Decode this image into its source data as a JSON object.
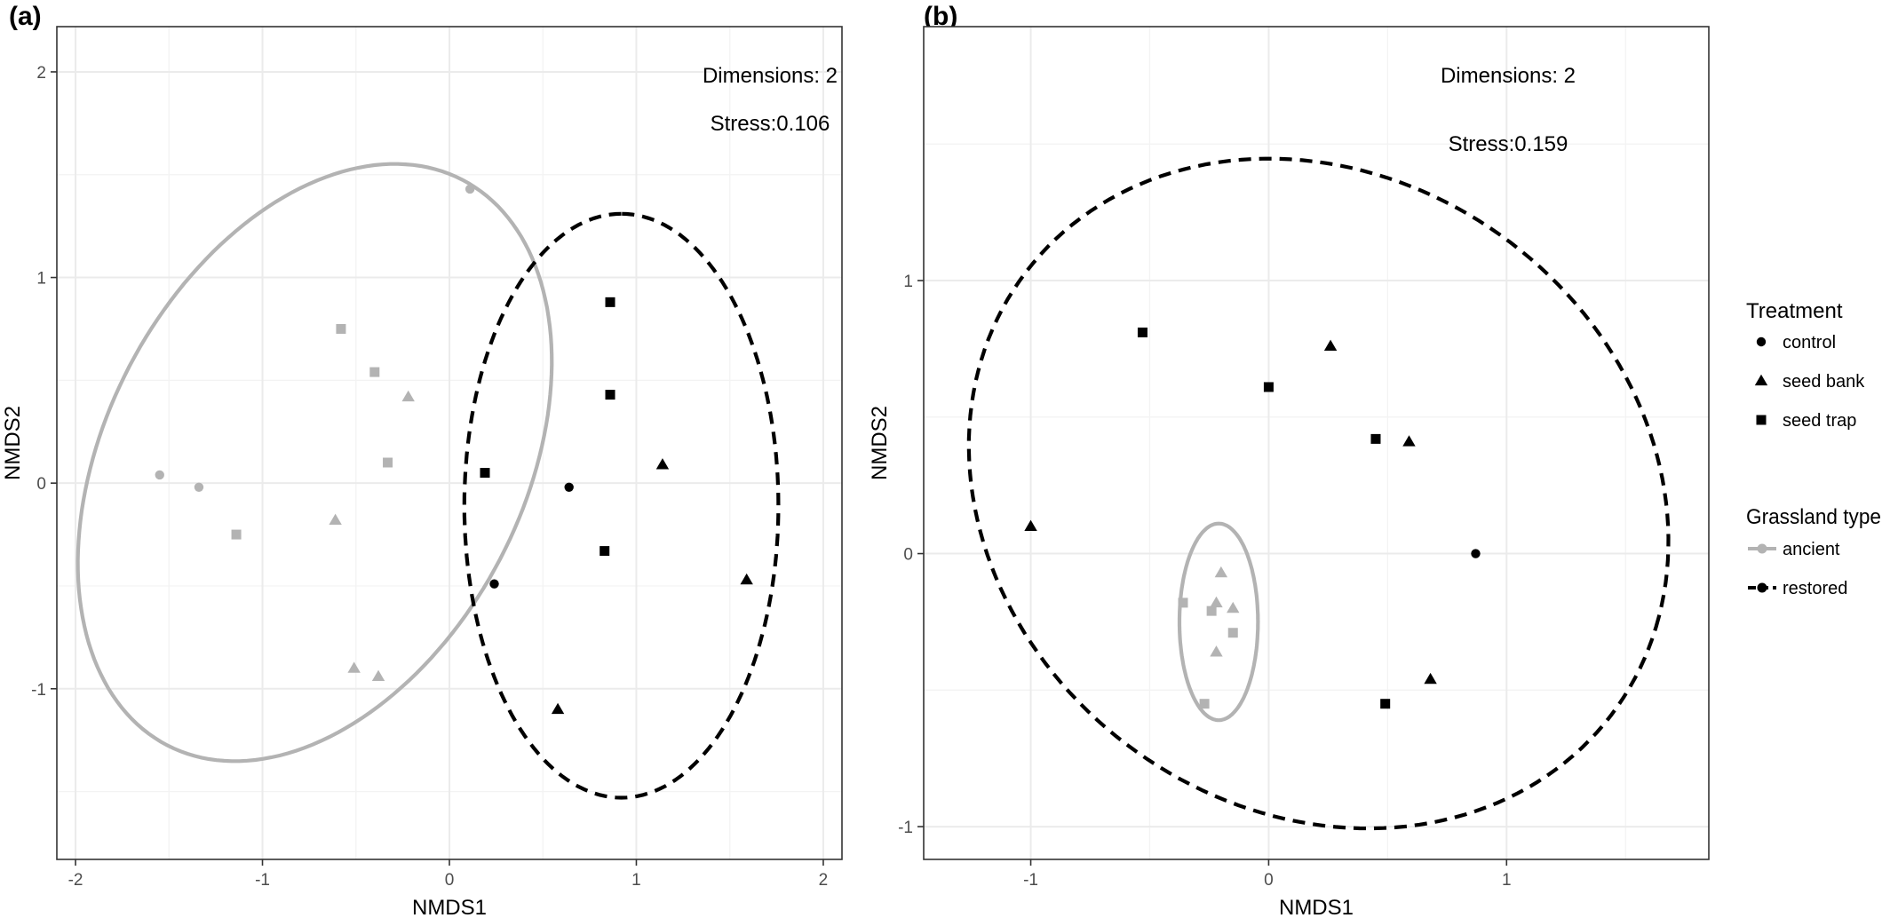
{
  "chart_data": [
    {
      "type": "scatter",
      "panel_label": "(a)",
      "xlabel": "NMDS1",
      "ylabel": "NMDS2",
      "xlim": [
        -2.1,
        2.1
      ],
      "ylim": [
        -1.83,
        2.22
      ],
      "xticks": [
        -2,
        -1,
        0,
        1,
        2
      ],
      "xtick_labels": [
        "-2",
        "-1",
        "0",
        "1",
        "2"
      ],
      "yticks": [
        -1,
        0,
        1,
        2
      ],
      "ytick_labels": [
        "-1",
        "0",
        "1",
        "2"
      ],
      "grid": true,
      "annotations": [
        "Dimensions: 2",
        "Stress:0.106"
      ],
      "points": [
        {
          "x": 0.11,
          "y": 1.43,
          "treatment": "control",
          "grassland": "ancient"
        },
        {
          "x": -1.55,
          "y": 0.04,
          "treatment": "control",
          "grassland": "ancient"
        },
        {
          "x": -1.34,
          "y": -0.02,
          "treatment": "control",
          "grassland": "ancient"
        },
        {
          "x": -0.58,
          "y": 0.75,
          "treatment": "seed trap",
          "grassland": "ancient"
        },
        {
          "x": -0.4,
          "y": 0.54,
          "treatment": "seed trap",
          "grassland": "ancient"
        },
        {
          "x": -0.33,
          "y": 0.1,
          "treatment": "seed trap",
          "grassland": "ancient"
        },
        {
          "x": -1.14,
          "y": -0.25,
          "treatment": "seed trap",
          "grassland": "ancient"
        },
        {
          "x": -0.22,
          "y": 0.42,
          "treatment": "seed bank",
          "grassland": "ancient"
        },
        {
          "x": -0.61,
          "y": -0.18,
          "treatment": "seed bank",
          "grassland": "ancient"
        },
        {
          "x": -0.51,
          "y": -0.9,
          "treatment": "seed bank",
          "grassland": "ancient"
        },
        {
          "x": -0.38,
          "y": -0.94,
          "treatment": "seed bank",
          "grassland": "ancient"
        },
        {
          "x": 0.64,
          "y": -0.02,
          "treatment": "control",
          "grassland": "restored"
        },
        {
          "x": 0.24,
          "y": -0.49,
          "treatment": "control",
          "grassland": "restored"
        },
        {
          "x": 0.86,
          "y": 0.88,
          "treatment": "seed trap",
          "grassland": "restored"
        },
        {
          "x": 0.86,
          "y": 0.43,
          "treatment": "seed trap",
          "grassland": "restored"
        },
        {
          "x": 0.19,
          "y": 0.05,
          "treatment": "seed trap",
          "grassland": "restored"
        },
        {
          "x": 0.83,
          "y": -0.33,
          "treatment": "seed trap",
          "grassland": "restored"
        },
        {
          "x": 1.14,
          "y": 0.09,
          "treatment": "seed bank",
          "grassland": "restored"
        },
        {
          "x": 1.59,
          "y": -0.47,
          "treatment": "seed bank",
          "grassland": "restored"
        },
        {
          "x": 0.58,
          "y": -1.1,
          "treatment": "seed bank",
          "grassland": "restored"
        }
      ],
      "ellipses": [
        {
          "grassland": "ancient",
          "cx": -0.72,
          "cy": 0.1,
          "rx": 1.59,
          "ry": 1.09,
          "angle_deg": 56
        },
        {
          "grassland": "restored",
          "cx": 0.92,
          "cy": -0.11,
          "rx": 1.42,
          "ry": 0.84,
          "angle_deg": 90
        }
      ]
    },
    {
      "type": "scatter",
      "panel_label": "(b)",
      "xlabel": "NMDS1",
      "ylabel": "NMDS2",
      "xlim": [
        -1.45,
        1.85
      ],
      "ylim": [
        -1.12,
        1.93
      ],
      "xticks": [
        -1,
        0,
        1
      ],
      "xtick_labels": [
        "-1",
        "0",
        "1"
      ],
      "yticks": [
        -1,
        0,
        1
      ],
      "ytick_labels": [
        "-1",
        "0",
        "1"
      ],
      "grid": true,
      "annotations": [
        "Dimensions: 2",
        "Stress:0.159"
      ],
      "points": [
        {
          "x": -0.2,
          "y": -0.07,
          "treatment": "seed bank",
          "grassland": "ancient"
        },
        {
          "x": -0.22,
          "y": -0.18,
          "treatment": "seed bank",
          "grassland": "ancient"
        },
        {
          "x": -0.15,
          "y": -0.2,
          "treatment": "seed bank",
          "grassland": "ancient"
        },
        {
          "x": -0.22,
          "y": -0.36,
          "treatment": "seed bank",
          "grassland": "ancient"
        },
        {
          "x": -0.36,
          "y": -0.18,
          "treatment": "seed trap",
          "grassland": "ancient"
        },
        {
          "x": -0.24,
          "y": -0.21,
          "treatment": "seed trap",
          "grassland": "ancient"
        },
        {
          "x": -0.15,
          "y": -0.29,
          "treatment": "seed trap",
          "grassland": "ancient"
        },
        {
          "x": -0.27,
          "y": -0.55,
          "treatment": "seed trap",
          "grassland": "ancient"
        },
        {
          "x": 0.87,
          "y": 0.0,
          "treatment": "control",
          "grassland": "restored"
        },
        {
          "x": -1.0,
          "y": 0.1,
          "treatment": "seed bank",
          "grassland": "restored"
        },
        {
          "x": 0.26,
          "y": 0.76,
          "treatment": "seed bank",
          "grassland": "restored"
        },
        {
          "x": 0.59,
          "y": 0.41,
          "treatment": "seed bank",
          "grassland": "restored"
        },
        {
          "x": 0.68,
          "y": -0.46,
          "treatment": "seed bank",
          "grassland": "restored"
        },
        {
          "x": -0.53,
          "y": 0.81,
          "treatment": "seed trap",
          "grassland": "restored"
        },
        {
          "x": 0.0,
          "y": 0.61,
          "treatment": "seed trap",
          "grassland": "restored"
        },
        {
          "x": 0.45,
          "y": 0.42,
          "treatment": "seed trap",
          "grassland": "restored"
        },
        {
          "x": 0.49,
          "y": -0.55,
          "treatment": "seed trap",
          "grassland": "restored"
        }
      ],
      "ellipses": [
        {
          "grassland": "ancient",
          "cx": -0.21,
          "cy": -0.25,
          "rx": 0.36,
          "ry": 0.165,
          "angle_deg": 90
        },
        {
          "grassland": "restored",
          "cx": 0.21,
          "cy": 0.22,
          "rx": 1.5,
          "ry": 1.19,
          "angle_deg": -19
        }
      ]
    }
  ],
  "legend": {
    "treatment_title": "Treatment",
    "treatment_items": [
      {
        "label": "control",
        "shape": "circle"
      },
      {
        "label": "seed bank",
        "shape": "triangle"
      },
      {
        "label": "seed trap",
        "shape": "square"
      }
    ],
    "grassland_title": "Grassland type",
    "grassland_items": [
      {
        "label": "ancient",
        "color": "#b3b3b3",
        "dash": "solid"
      },
      {
        "label": "restored",
        "color": "#000000",
        "dash": "dashed"
      }
    ]
  },
  "colors": {
    "ancient": "#b3b3b3",
    "restored": "#000000",
    "grid": "#ebebeb",
    "frame": "#333333"
  }
}
